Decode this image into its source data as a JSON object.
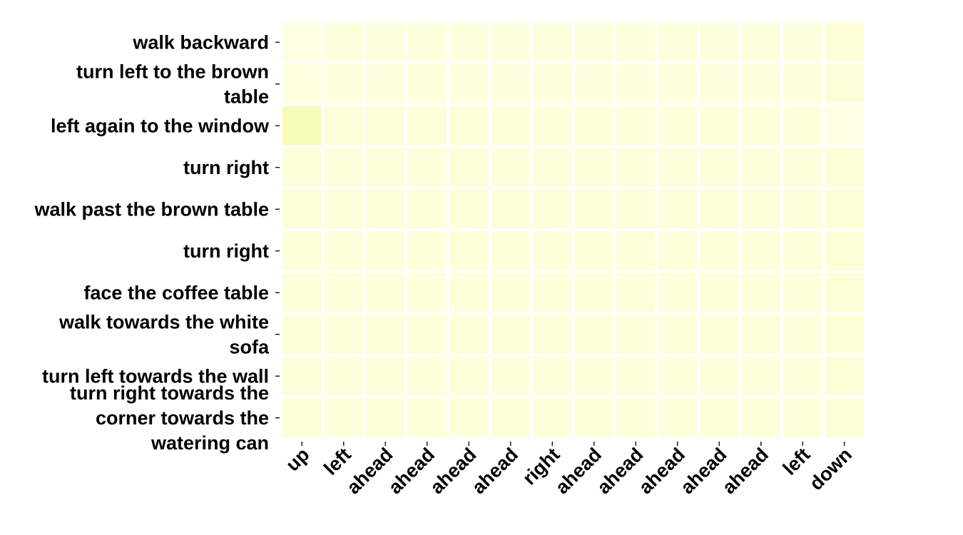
{
  "chart_data": {
    "type": "heatmap",
    "title": "",
    "xlabel": "",
    "ylabel": "",
    "x_categories": [
      "up",
      "left",
      "ahead",
      "ahead",
      "ahead",
      "ahead",
      "right",
      "ahead",
      "ahead",
      "ahead",
      "ahead",
      "ahead",
      "left",
      "down"
    ],
    "y_categories": [
      [
        "walk backward"
      ],
      [
        "turn left to the brown",
        "table"
      ],
      [
        "left again to the window"
      ],
      [
        "turn right"
      ],
      [
        "walk past the brown table"
      ],
      [
        "turn right"
      ],
      [
        "face the coffee table"
      ],
      [
        "walk towards the white",
        "sofa"
      ],
      [
        "turn left towards the wall"
      ],
      [
        "turn right towards the",
        "corner towards the",
        "watering can"
      ]
    ],
    "values": [
      [
        0.04,
        0.07,
        0.07,
        0.07,
        0.07,
        0.07,
        0.07,
        0.07,
        0.07,
        0.07,
        0.07,
        0.07,
        0.07,
        0.1
      ],
      [
        0.05,
        0.07,
        0.07,
        0.07,
        0.07,
        0.07,
        0.07,
        0.07,
        0.07,
        0.07,
        0.07,
        0.07,
        0.07,
        0.09
      ],
      [
        0.35,
        0.09,
        0.09,
        0.09,
        0.08,
        0.08,
        0.08,
        0.08,
        0.08,
        0.08,
        0.08,
        0.08,
        0.08,
        0.01
      ],
      [
        0.08,
        0.08,
        0.08,
        0.08,
        0.08,
        0.08,
        0.08,
        0.08,
        0.08,
        0.08,
        0.08,
        0.08,
        0.08,
        0.11
      ],
      [
        0.08,
        0.08,
        0.08,
        0.08,
        0.08,
        0.08,
        0.08,
        0.08,
        0.08,
        0.08,
        0.08,
        0.08,
        0.08,
        0.12
      ],
      [
        0.08,
        0.08,
        0.08,
        0.08,
        0.08,
        0.08,
        0.08,
        0.08,
        0.08,
        0.08,
        0.08,
        0.08,
        0.08,
        0.11
      ],
      [
        0.08,
        0.08,
        0.08,
        0.08,
        0.08,
        0.08,
        0.08,
        0.08,
        0.08,
        0.08,
        0.08,
        0.08,
        0.08,
        0.11
      ],
      [
        0.08,
        0.08,
        0.08,
        0.08,
        0.08,
        0.08,
        0.08,
        0.08,
        0.08,
        0.08,
        0.08,
        0.08,
        0.08,
        0.11
      ],
      [
        0.08,
        0.08,
        0.08,
        0.08,
        0.08,
        0.08,
        0.08,
        0.08,
        0.08,
        0.08,
        0.08,
        0.08,
        0.08,
        0.1
      ],
      [
        0.08,
        0.08,
        0.08,
        0.08,
        0.08,
        0.08,
        0.08,
        0.08,
        0.08,
        0.08,
        0.08,
        0.08,
        0.08,
        0.1
      ]
    ],
    "colormap": [
      "#ffffe5",
      "#f7fcb9",
      "#d9f0a3",
      "#addd8e"
    ],
    "grid": false,
    "legend": "none",
    "cell_border_color": "#ffffff"
  }
}
